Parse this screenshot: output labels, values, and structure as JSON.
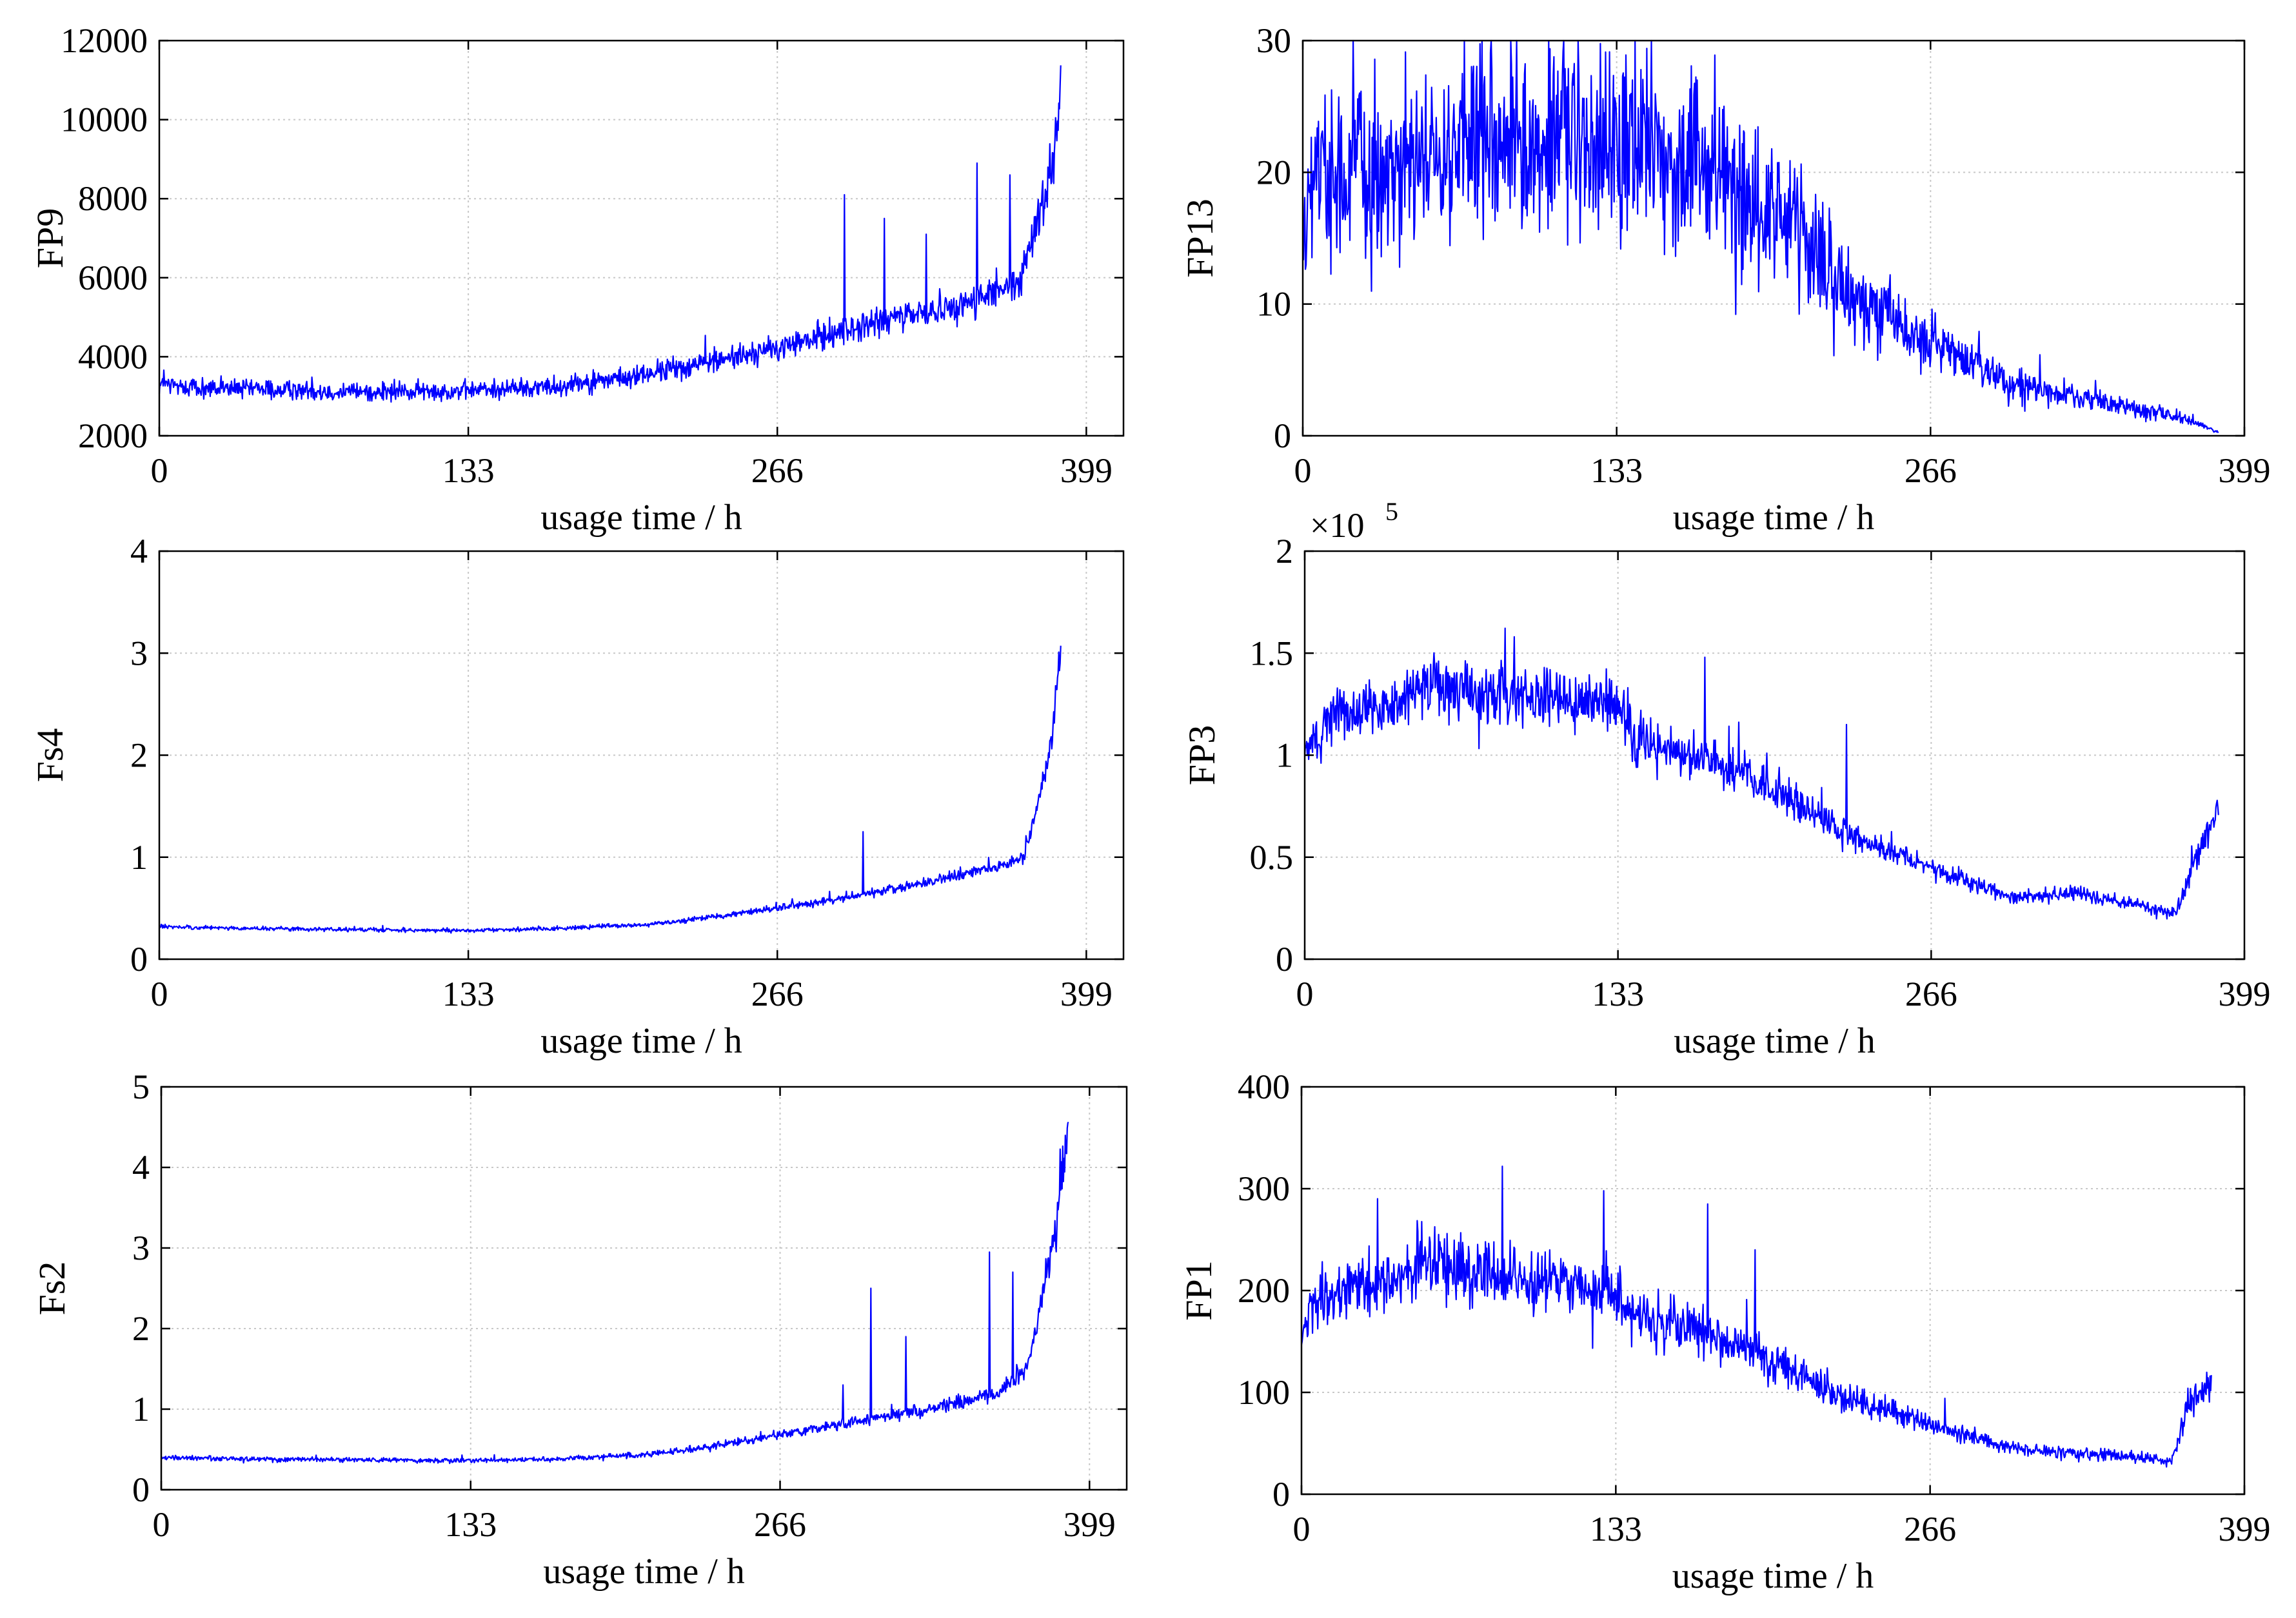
{
  "figure": {
    "x_label": "usage time / h",
    "x_ticks": [
      0,
      133,
      266,
      399
    ],
    "line_color": "#0000ff",
    "grid_color": "#c8c8c8"
  },
  "chart_data": [
    {
      "id": "fp9",
      "type": "line",
      "ylabel": "FP9",
      "xlabel": "usage time / h",
      "xlim": [
        0,
        415
      ],
      "ylim": [
        2000,
        12000
      ],
      "y_ticks": [
        2000,
        4000,
        6000,
        8000,
        10000,
        12000
      ],
      "y_tick_labels": [
        "2000",
        "4000",
        "6000",
        "8000",
        "10000",
        "12000"
      ],
      "x_end": 388,
      "exponent": "",
      "series": [
        {
          "name": "FP9",
          "x": [
            0,
            20,
            60,
            100,
            133,
            170,
            200,
            230,
            266,
            290,
            320,
            350,
            370,
            378,
            385,
            388
          ],
          "y": [
            3300,
            3200,
            3150,
            3100,
            3150,
            3250,
            3450,
            3800,
            4200,
            4600,
            5000,
            5400,
            5800,
            7500,
            9000,
            11000
          ],
          "noise": 0.06,
          "spikes": [
            [
              295,
              8100
            ],
            [
              312,
              7500
            ],
            [
              330,
              7100
            ],
            [
              352,
              8900
            ],
            [
              366,
              8600
            ]
          ]
        }
      ]
    },
    {
      "id": "fp13",
      "type": "line",
      "ylabel": "FP13",
      "xlabel": "usage time / h",
      "xlim": [
        0,
        399
      ],
      "ylim": [
        0,
        30
      ],
      "y_ticks": [
        0,
        10,
        20,
        30
      ],
      "y_tick_labels": [
        "0",
        "10",
        "20",
        "30"
      ],
      "x_end": 388,
      "exponent": "",
      "series": [
        {
          "name": "FP13",
          "x": [
            0,
            5,
            30,
            60,
            90,
            120,
            150,
            180,
            210,
            230,
            266,
            300,
            340,
            370,
            388
          ],
          "y": [
            14,
            20,
            20,
            21,
            22,
            23,
            21,
            19,
            15,
            11,
            7,
            4,
            2.5,
            1.5,
            0.3
          ],
          "noise": 0.25,
          "spikes": []
        }
      ]
    },
    {
      "id": "fs4",
      "type": "line",
      "ylabel": "Fs4",
      "xlabel": "usage time / h",
      "xlim": [
        0,
        415
      ],
      "ylim": [
        0,
        4
      ],
      "y_ticks": [
        0,
        1,
        2,
        3,
        4
      ],
      "y_tick_labels": [
        "0",
        "1",
        "2",
        "3",
        "4"
      ],
      "x_end": 388,
      "exponent": "",
      "series": [
        {
          "name": "Fs4",
          "x": [
            0,
            40,
            80,
            133,
            170,
            210,
            240,
            266,
            300,
            330,
            360,
            372,
            378,
            384,
            388
          ],
          "y": [
            0.32,
            0.3,
            0.29,
            0.28,
            0.3,
            0.34,
            0.42,
            0.5,
            0.62,
            0.75,
            0.9,
            1.0,
            1.5,
            2.1,
            3.1
          ],
          "noise": 0.05,
          "spikes": [
            [
              303,
              1.25
            ]
          ]
        }
      ]
    },
    {
      "id": "fp3",
      "type": "line",
      "ylabel": "FP3",
      "xlabel": "usage time / h",
      "xlim": [
        0,
        399
      ],
      "ylim": [
        0,
        2
      ],
      "y_ticks": [
        0,
        0.5,
        1,
        1.5,
        2
      ],
      "y_tick_labels": [
        "0",
        "0.5",
        "1",
        "1.5",
        "2"
      ],
      "x_end": 388,
      "exponent": "5",
      "series": [
        {
          "name": "FP3",
          "x": [
            0,
            10,
            30,
            50,
            80,
            110,
            133,
            140,
            170,
            200,
            230,
            266,
            300,
            330,
            360,
            370,
            378,
            388
          ],
          "y": [
            1.0,
            1.2,
            1.22,
            1.33,
            1.3,
            1.28,
            1.25,
            1.08,
            0.98,
            0.82,
            0.62,
            0.45,
            0.3,
            0.32,
            0.25,
            0.22,
            0.5,
            0.75
          ],
          "noise": 0.09,
          "spikes": [
            [
              89,
              1.58
            ],
            [
              170,
              1.48
            ],
            [
              230,
              1.15
            ]
          ]
        }
      ]
    },
    {
      "id": "fs2",
      "type": "line",
      "ylabel": "Fs2",
      "xlabel": "usage time / h",
      "xlim": [
        0,
        415
      ],
      "ylim": [
        0,
        5
      ],
      "y_ticks": [
        0,
        1,
        2,
        3,
        4,
        5
      ],
      "y_tick_labels": [
        "0",
        "1",
        "2",
        "3",
        "4",
        "5"
      ],
      "x_end": 390,
      "exponent": "",
      "series": [
        {
          "name": "Fs2",
          "x": [
            0,
            40,
            80,
            133,
            170,
            210,
            240,
            266,
            300,
            330,
            360,
            372,
            378,
            385,
            390
          ],
          "y": [
            0.4,
            0.38,
            0.37,
            0.36,
            0.38,
            0.44,
            0.55,
            0.68,
            0.85,
            1.0,
            1.2,
            1.5,
            2.3,
            3.3,
            4.6
          ],
          "noise": 0.06,
          "spikes": [
            [
              293,
              1.3
            ],
            [
              305,
              2.5
            ],
            [
              320,
              1.9
            ],
            [
              356,
              2.95
            ],
            [
              366,
              2.7
            ]
          ]
        }
      ]
    },
    {
      "id": "fp1",
      "type": "line",
      "ylabel": "FP1",
      "xlabel": "usage time / h",
      "xlim": [
        0,
        399
      ],
      "ylim": [
        0,
        400
      ],
      "y_ticks": [
        0,
        100,
        200,
        300,
        400
      ],
      "y_tick_labels": [
        "0",
        "100",
        "200",
        "300",
        "400"
      ],
      "x_end": 385,
      "exponent": "",
      "series": [
        {
          "name": "FP1",
          "x": [
            0,
            5,
            30,
            55,
            80,
            110,
            133,
            140,
            170,
            200,
            230,
            266,
            300,
            330,
            360,
            368,
            375,
            385
          ],
          "y": [
            150,
            195,
            205,
            230,
            220,
            205,
            200,
            170,
            160,
            130,
            95,
            70,
            45,
            40,
            35,
            30,
            85,
            110
          ],
          "noise": 0.12,
          "spikes": [
            [
              85,
              322
            ],
            [
              128,
              298
            ],
            [
              172,
              285
            ],
            [
              192,
              240
            ]
          ]
        }
      ]
    }
  ]
}
